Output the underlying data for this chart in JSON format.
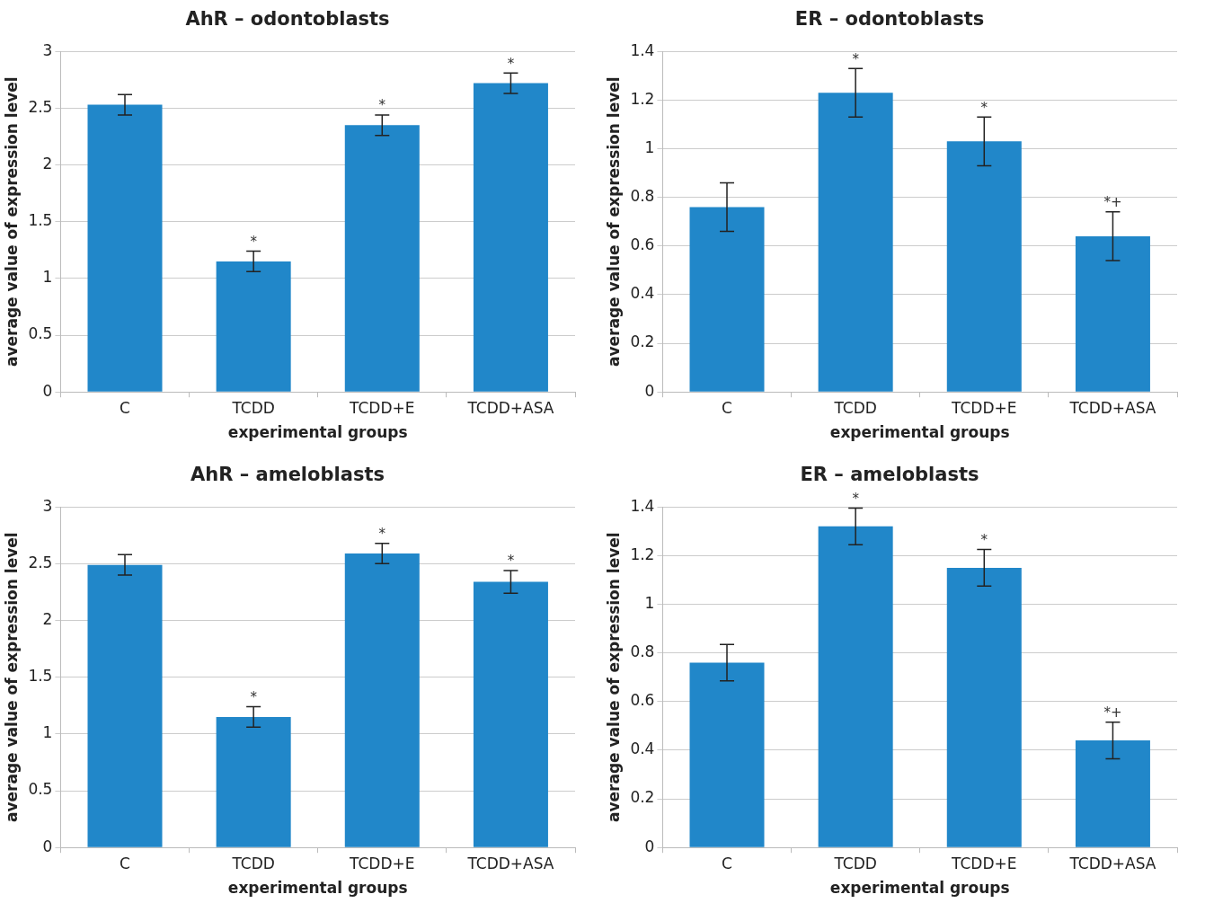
{
  "chart_data": [
    {
      "type": "bar",
      "title": "AhR – odontoblasts",
      "xlabel": "experimental groups",
      "ylabel": "average value of expression level",
      "categories": [
        "C",
        "TCDD",
        "TCDD+E",
        "TCDD+ASA"
      ],
      "values": [
        2.53,
        1.15,
        2.35,
        2.72
      ],
      "errors": [
        0.09,
        0.09,
        0.09,
        0.09
      ],
      "color": "#2187c9",
      "ylim": [
        0,
        3
      ],
      "yticks": [
        0,
        0.5,
        1,
        1.5,
        2,
        2.5,
        3
      ],
      "grid": "y",
      "legend": false,
      "annotations": [
        {
          "text": "*",
          "x": "TCDD",
          "y": 1.24
        },
        {
          "text": "*",
          "x": "TCDD+E",
          "y": 2.44
        },
        {
          "text": "*",
          "x": "TCDD+ASA",
          "y": 2.81
        }
      ]
    },
    {
      "type": "bar",
      "title": "ER – odontoblasts",
      "xlabel": "experimental groups",
      "ylabel": "average value of expression level",
      "categories": [
        "C",
        "TCDD",
        "TCDD+E",
        "TCDD+ASA"
      ],
      "values": [
        0.76,
        1.23,
        1.03,
        0.64
      ],
      "errors": [
        0.1,
        0.1,
        0.1,
        0.1
      ],
      "color": "#2187c9",
      "ylim": [
        0,
        1.4
      ],
      "yticks": [
        0,
        0.2,
        0.4,
        0.6,
        0.8,
        1,
        1.2,
        1.4
      ],
      "grid": "y",
      "legend": false,
      "annotations": [
        {
          "text": "*",
          "x": "TCDD",
          "y": 1.33
        },
        {
          "text": "*",
          "x": "TCDD+E",
          "y": 1.13
        },
        {
          "text": "*+",
          "x": "TCDD+ASA",
          "y": 0.74
        }
      ]
    },
    {
      "type": "bar",
      "title": "AhR – ameloblasts",
      "xlabel": "experimental groups",
      "ylabel": "average value of expression level",
      "categories": [
        "C",
        "TCDD",
        "TCDD+E",
        "TCDD+ASA"
      ],
      "values": [
        2.49,
        1.15,
        2.59,
        2.34
      ],
      "errors": [
        0.09,
        0.09,
        0.09,
        0.1
      ],
      "color": "#2187c9",
      "ylim": [
        0,
        3
      ],
      "yticks": [
        0,
        0.5,
        1,
        1.5,
        2,
        2.5,
        3
      ],
      "grid": "y",
      "legend": false,
      "annotations": [
        {
          "text": "*",
          "x": "TCDD",
          "y": 1.24
        },
        {
          "text": "*",
          "x": "TCDD+E",
          "y": 2.68
        },
        {
          "text": "*",
          "x": "TCDD+ASA",
          "y": 2.44
        }
      ]
    },
    {
      "type": "bar",
      "title": "ER – ameloblasts",
      "xlabel": "experimental groups",
      "ylabel": "average value of expression level",
      "categories": [
        "C",
        "TCDD",
        "TCDD+E",
        "TCDD+ASA"
      ],
      "values": [
        0.76,
        1.32,
        1.15,
        0.44
      ],
      "errors": [
        0.075,
        0.075,
        0.075,
        0.075
      ],
      "color": "#2187c9",
      "ylim": [
        0,
        1.4
      ],
      "yticks": [
        0,
        0.2,
        0.4,
        0.6,
        0.8,
        1,
        1.2,
        1.4
      ],
      "grid": "y",
      "legend": false,
      "annotations": [
        {
          "text": "*",
          "x": "TCDD",
          "y": 1.395
        },
        {
          "text": "*",
          "x": "TCDD+E",
          "y": 1.225
        },
        {
          "text": "*+",
          "x": "TCDD+ASA",
          "y": 0.515
        }
      ]
    }
  ]
}
